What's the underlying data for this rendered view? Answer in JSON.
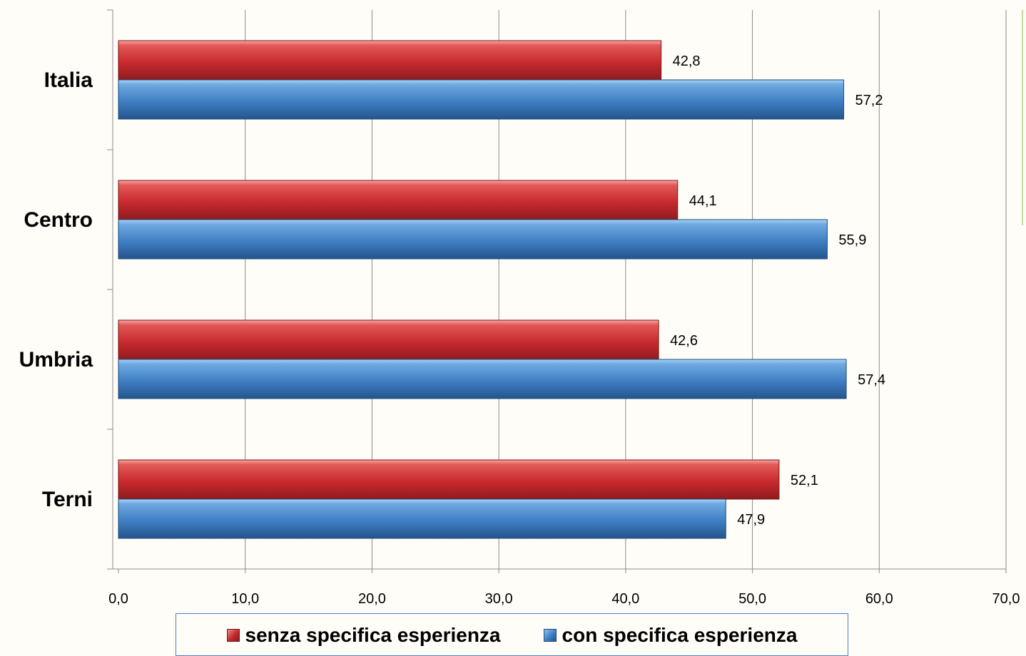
{
  "chart_data": {
    "type": "bar",
    "orientation": "horizontal",
    "categories": [
      "Italia",
      "Centro",
      "Umbria",
      "Terni"
    ],
    "series": [
      {
        "name": "senza specifica esperienza",
        "values": [
          42.8,
          44.1,
          42.6,
          52.1
        ],
        "labels": [
          "42,8",
          "44,1",
          "42,6",
          "52,1"
        ],
        "color": "#c0272d"
      },
      {
        "name": "con specifica esperienza",
        "values": [
          57.2,
          55.9,
          57.4,
          47.9
        ],
        "labels": [
          "57,2",
          "55,9",
          "57,4",
          "47,9"
        ],
        "color": "#3f7fc4"
      }
    ],
    "xlim": [
      0,
      70
    ],
    "xticks": [
      0,
      10,
      20,
      30,
      40,
      50,
      60,
      70
    ],
    "xtick_labels": [
      "0,0",
      "10,0",
      "20,0",
      "30,0",
      "40,0",
      "50,0",
      "60,0",
      "70,0"
    ],
    "grid": true,
    "legend_position": "bottom",
    "title": "",
    "xlabel": "",
    "ylabel": ""
  }
}
